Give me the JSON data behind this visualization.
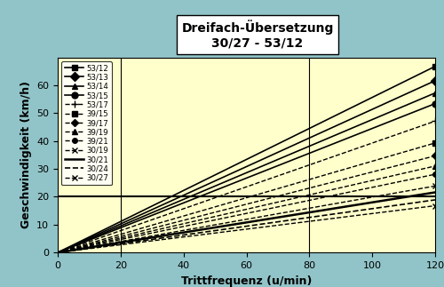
{
  "title": "Dreifach-Übersetzung\n30/27 - 53/12",
  "xlabel": "Trittfrequenz (u/min)",
  "ylabel": "Geschwindigkeit (km/h)",
  "bg_outer": "#91c4c8",
  "bg_inner": "#ffffcc",
  "xlim": [
    0,
    120
  ],
  "ylim": [
    0,
    70
  ],
  "xticks": [
    0,
    20,
    40,
    60,
    80,
    100,
    120
  ],
  "yticks": [
    0,
    10,
    20,
    30,
    40,
    50,
    60
  ],
  "vlines": [
    20,
    80
  ],
  "hlines": [
    20
  ],
  "wheel_circ_m": 2.1,
  "gears": [
    {
      "label": "53/12",
      "chainring": 53,
      "sprocket": 12,
      "marker": "s",
      "linestyle": "-",
      "color": "#000000",
      "linewidth": 1.2,
      "markersize": 5
    },
    {
      "label": "53/13",
      "chainring": 53,
      "sprocket": 13,
      "marker": "D",
      "linestyle": "-",
      "color": "#000000",
      "linewidth": 1.2,
      "markersize": 5
    },
    {
      "label": "53/14",
      "chainring": 53,
      "sprocket": 14,
      "marker": "^",
      "linestyle": "-",
      "color": "#000000",
      "linewidth": 1.2,
      "markersize": 5
    },
    {
      "label": "53/15",
      "chainring": 53,
      "sprocket": 15,
      "marker": "o",
      "linestyle": "-",
      "color": "#000000",
      "linewidth": 1.2,
      "markersize": 5
    },
    {
      "label": "53/17",
      "chainring": 53,
      "sprocket": 17,
      "marker": "+",
      "linestyle": "--",
      "color": "#000000",
      "linewidth": 1.0,
      "markersize": 6
    },
    {
      "label": "39/15",
      "chainring": 39,
      "sprocket": 15,
      "marker": "s",
      "linestyle": "--",
      "color": "#000000",
      "linewidth": 1.0,
      "markersize": 4
    },
    {
      "label": "39/17",
      "chainring": 39,
      "sprocket": 17,
      "marker": "D",
      "linestyle": "--",
      "color": "#000000",
      "linewidth": 1.0,
      "markersize": 4
    },
    {
      "label": "39/19",
      "chainring": 39,
      "sprocket": 19,
      "marker": "^",
      "linestyle": "--",
      "color": "#000000",
      "linewidth": 1.0,
      "markersize": 4
    },
    {
      "label": "39/21",
      "chainring": 39,
      "sprocket": 21,
      "marker": "o",
      "linestyle": "--",
      "color": "#000000",
      "linewidth": 1.0,
      "markersize": 4
    },
    {
      "label": "30/19",
      "chainring": 30,
      "sprocket": 19,
      "marker": "x",
      "linestyle": "--",
      "color": "#000000",
      "linewidth": 1.0,
      "markersize": 5
    },
    {
      "label": "30/21",
      "chainring": 30,
      "sprocket": 21,
      "marker": "None",
      "linestyle": "-",
      "color": "#000000",
      "linewidth": 1.8,
      "markersize": 5
    },
    {
      "label": "30/24",
      "chainring": 30,
      "sprocket": 24,
      "marker": "None",
      "linestyle": "--",
      "color": "#000000",
      "linewidth": 1.2,
      "markersize": 5
    },
    {
      "label": "30/27",
      "chainring": 30,
      "sprocket": 27,
      "marker": "x",
      "linestyle": "--",
      "color": "#000000",
      "linewidth": 1.0,
      "markersize": 5
    }
  ]
}
